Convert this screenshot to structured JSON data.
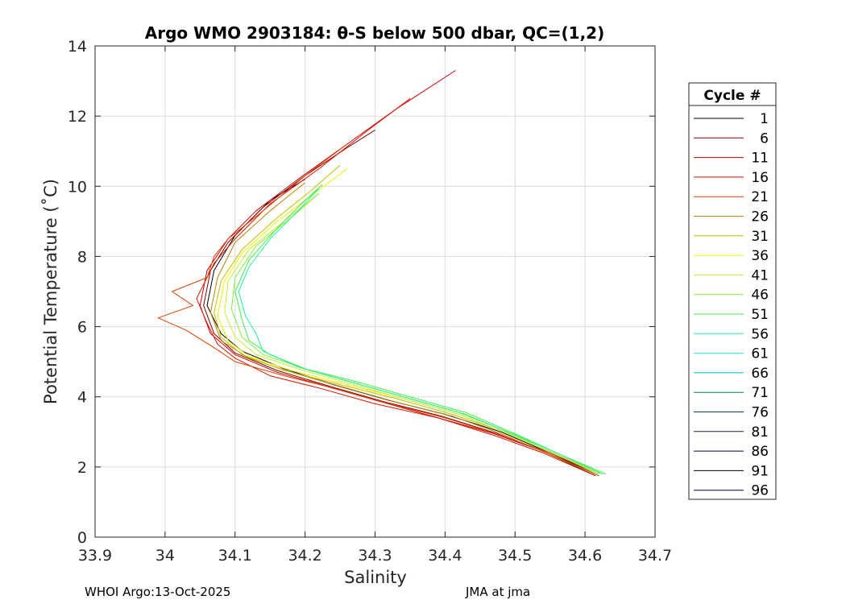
{
  "chart_data": {
    "type": "line",
    "title": "Argo WMO 2903184: θ-S below 500 dbar,  QC=(1,2)",
    "xlabel": "Salinity",
    "ylabel": "Potential Temperature (˚C)",
    "xlim": [
      33.9,
      34.7
    ],
    "ylim": [
      0,
      14
    ],
    "xticks": [
      33.9,
      34,
      34.1,
      34.2,
      34.3,
      34.4,
      34.5,
      34.6,
      34.7
    ],
    "yticks": [
      0,
      2,
      4,
      6,
      8,
      10,
      12,
      14
    ],
    "xtick_labels": [
      "33.9",
      "34",
      "34.1",
      "34.2",
      "34.3",
      "34.4",
      "34.5",
      "34.6",
      "34.7"
    ],
    "ytick_labels": [
      "0",
      "2",
      "4",
      "6",
      "8",
      "10",
      "12",
      "14"
    ],
    "grid": true,
    "legend_title": "Cycle #",
    "legend_position": "outside-right",
    "legend": [
      {
        "label": "1",
        "color": "#000000"
      },
      {
        "label": "6",
        "color": "#800000"
      },
      {
        "label": "11",
        "color": "#d00000"
      },
      {
        "label": "16",
        "color": "#e01000"
      },
      {
        "label": "21",
        "color": "#e04000"
      },
      {
        "label": "26",
        "color": "#c08000"
      },
      {
        "label": "31",
        "color": "#c0c000"
      },
      {
        "label": "36",
        "color": "#f0f000"
      },
      {
        "label": "41",
        "color": "#c0f030"
      },
      {
        "label": "46",
        "color": "#80f040"
      },
      {
        "label": "51",
        "color": "#40f040"
      },
      {
        "label": "56",
        "color": "#20f0a0"
      },
      {
        "label": "61",
        "color": "#20f0e0"
      },
      {
        "label": "66",
        "color": "#00c0c0"
      },
      {
        "label": "71",
        "color": "#008060"
      },
      {
        "label": "76",
        "color": "#004060"
      },
      {
        "label": "81",
        "color": "#202060"
      },
      {
        "label": "86",
        "color": "#000060"
      },
      {
        "label": "91",
        "color": "#000000"
      },
      {
        "label": "96",
        "color": "#000040"
      }
    ],
    "series": [
      {
        "name": "1",
        "color": "#000000",
        "x": [
          34.62,
          34.55,
          34.48,
          34.4,
          34.32,
          34.24,
          34.17,
          34.11,
          34.08,
          34.06,
          34.07,
          34.1,
          34.15,
          34.2
        ],
        "y": [
          1.75,
          2.4,
          3.0,
          3.5,
          3.9,
          4.35,
          4.8,
          5.3,
          5.8,
          6.6,
          7.6,
          8.6,
          9.6,
          10.2
        ]
      },
      {
        "name": "6",
        "color": "#800000",
        "x": [
          34.615,
          34.545,
          34.475,
          34.395,
          34.315,
          34.235,
          34.16,
          34.1,
          34.07,
          34.055,
          34.065,
          34.09,
          34.14,
          34.2,
          34.26,
          34.3
        ],
        "y": [
          1.75,
          2.4,
          2.95,
          3.45,
          3.85,
          4.3,
          4.75,
          5.25,
          5.8,
          6.6,
          7.6,
          8.4,
          9.4,
          10.3,
          11.1,
          11.6
        ]
      },
      {
        "name": "11",
        "color": "#d00000",
        "x": [
          34.62,
          34.54,
          34.47,
          34.39,
          34.31,
          34.23,
          34.16,
          34.1,
          34.065,
          34.05,
          34.06,
          34.09,
          34.13,
          34.19,
          34.26,
          34.33,
          34.415
        ],
        "y": [
          1.75,
          2.45,
          2.95,
          3.4,
          3.85,
          4.3,
          4.7,
          5.2,
          5.8,
          6.6,
          7.6,
          8.5,
          9.3,
          10.2,
          11.2,
          12.2,
          13.3
        ]
      },
      {
        "name": "16",
        "color": "#e01000",
        "x": [
          34.615,
          34.54,
          34.47,
          34.39,
          34.3,
          34.22,
          34.15,
          34.1,
          34.075,
          34.06,
          34.045,
          34.07,
          34.1,
          34.15,
          34.22,
          34.29,
          34.35
        ],
        "y": [
          1.75,
          2.4,
          2.9,
          3.4,
          3.8,
          4.25,
          4.6,
          5.1,
          5.5,
          6.1,
          6.8,
          7.8,
          8.5,
          9.5,
          10.5,
          11.6,
          12.5
        ]
      },
      {
        "name": "21",
        "color": "#e04000",
        "x": [
          34.62,
          34.55,
          34.48,
          34.4,
          34.32,
          34.24,
          34.17,
          34.1,
          34.07,
          34.03,
          33.99,
          34.04,
          34.01,
          34.06,
          34.07,
          34.09,
          34.14,
          34.2,
          34.26
        ],
        "y": [
          1.8,
          2.4,
          2.9,
          3.4,
          3.8,
          4.25,
          4.6,
          5.0,
          5.4,
          5.9,
          6.25,
          6.6,
          7.0,
          7.4,
          8.0,
          8.5,
          9.3,
          10.3,
          11.2
        ]
      },
      {
        "name": "26",
        "color": "#c08000",
        "x": [
          34.62,
          34.55,
          34.48,
          34.41,
          34.33,
          34.25,
          34.18,
          34.12,
          34.08,
          34.065,
          34.075,
          34.1,
          34.15,
          34.2
        ],
        "y": [
          1.75,
          2.35,
          2.95,
          3.45,
          3.85,
          4.3,
          4.7,
          5.1,
          5.6,
          6.4,
          7.4,
          8.4,
          9.3,
          10.1
        ]
      },
      {
        "name": "31",
        "color": "#c0c000",
        "x": [
          34.625,
          34.555,
          34.485,
          34.41,
          34.33,
          34.25,
          34.17,
          34.11,
          34.08,
          34.07,
          34.08,
          34.11,
          34.16,
          34.21,
          34.25
        ],
        "y": [
          1.8,
          2.4,
          3.0,
          3.5,
          3.95,
          4.35,
          4.75,
          5.2,
          5.7,
          6.4,
          7.3,
          8.2,
          9.1,
          9.9,
          10.6
        ]
      },
      {
        "name": "36",
        "color": "#f0f000",
        "x": [
          34.62,
          34.56,
          34.49,
          34.42,
          34.34,
          34.26,
          34.18,
          34.12,
          34.09,
          34.075,
          34.085,
          34.11,
          34.16,
          34.22,
          34.26
        ],
        "y": [
          1.8,
          2.35,
          2.95,
          3.5,
          3.95,
          4.35,
          4.75,
          5.15,
          5.6,
          6.3,
          7.3,
          8.1,
          9.0,
          9.9,
          10.5
        ]
      },
      {
        "name": "41",
        "color": "#c0f030",
        "x": [
          34.625,
          34.56,
          34.49,
          34.42,
          34.34,
          34.26,
          34.19,
          34.13,
          34.1,
          34.085,
          34.09,
          34.12,
          34.17,
          34.22
        ],
        "y": [
          1.8,
          2.35,
          2.95,
          3.5,
          3.95,
          4.4,
          4.8,
          5.2,
          5.7,
          6.4,
          7.3,
          8.2,
          9.0,
          9.8
        ]
      },
      {
        "name": "46",
        "color": "#80f040",
        "x": [
          34.62,
          34.56,
          34.5,
          34.43,
          34.35,
          34.27,
          34.2,
          34.14,
          34.11,
          34.095,
          34.1,
          34.13,
          34.18,
          34.22
        ],
        "y": [
          1.8,
          2.35,
          2.9,
          3.5,
          3.95,
          4.4,
          4.8,
          5.2,
          5.7,
          6.5,
          7.4,
          8.3,
          9.1,
          9.8
        ]
      },
      {
        "name": "51",
        "color": "#40f040",
        "x": [
          34.63,
          34.565,
          34.5,
          34.43,
          34.35,
          34.27,
          34.2,
          34.15,
          34.12,
          34.11,
          34.1,
          34.12,
          34.16,
          34.2,
          34.225
        ],
        "y": [
          1.8,
          2.35,
          2.95,
          3.55,
          4.0,
          4.45,
          4.8,
          5.2,
          5.6,
          6.2,
          7.0,
          7.9,
          8.8,
          9.6,
          10.05
        ]
      },
      {
        "name": "56",
        "color": "#20f0a0",
        "x": [
          34.625,
          34.56,
          34.49,
          34.42,
          34.34,
          34.26,
          34.19,
          34.14,
          34.13,
          34.115,
          34.105,
          34.12,
          34.15,
          34.19,
          34.22
        ],
        "y": [
          1.8,
          2.4,
          3.0,
          3.55,
          4.0,
          4.45,
          4.85,
          5.3,
          5.8,
          6.3,
          7.0,
          7.7,
          8.5,
          9.3,
          9.95
        ]
      }
    ]
  },
  "footer": {
    "left": "WHOI Argo:13-Oct-2025",
    "right": "JMA at jma"
  }
}
